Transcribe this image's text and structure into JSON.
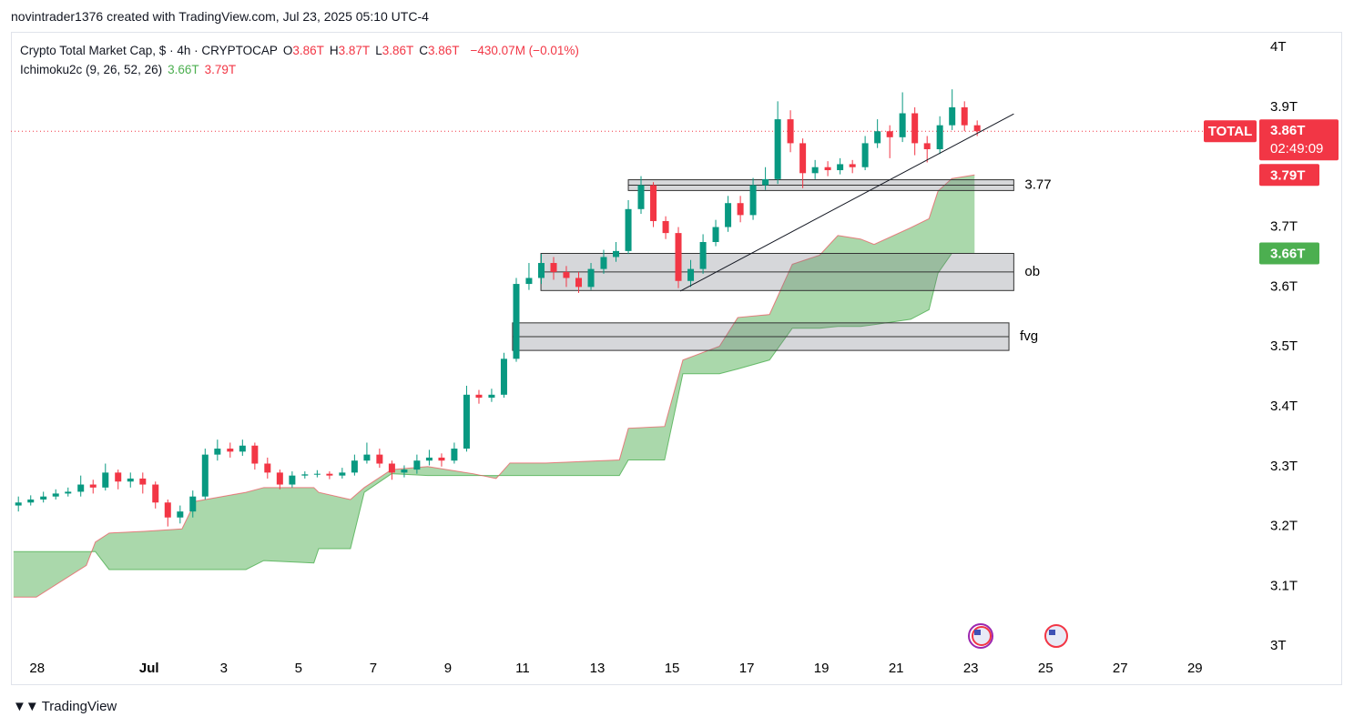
{
  "header": {
    "credit": "novintrader1376 created with TradingView.com, Jul 23, 2025 05:10 UTC-4"
  },
  "footer": {
    "brand": "TradingView"
  },
  "chart_data": {
    "type": "candlestick",
    "title": "Crypto Total Market Cap, $ · 4h · CRYPTOCAP",
    "ohlc_legend": [
      {
        "key": "O",
        "value": "3.86T"
      },
      {
        "key": "H",
        "value": "3.87T"
      },
      {
        "key": "L",
        "value": "3.86T"
      },
      {
        "key": "C",
        "value": "3.86T"
      }
    ],
    "change": "−430.07M (−0.01%)",
    "up_color": "#089981",
    "down_color": "#f23645",
    "x": [
      -0.5,
      -0.17,
      0.17,
      0.5,
      0.83,
      1.17,
      1.5,
      1.83,
      2.17,
      2.5,
      2.83,
      3.17,
      3.5,
      3.83,
      4.17,
      4.5,
      4.83,
      5.17,
      5.5,
      5.83,
      6.17,
      6.5,
      6.83,
      7.17,
      7.5,
      7.83,
      8.17,
      8.5,
      8.83,
      9.17,
      9.5,
      9.83,
      10.17,
      10.5,
      10.83,
      11.17,
      11.5,
      11.83,
      12.17,
      12.5,
      12.83,
      13.17,
      13.5,
      13.83,
      14.17,
      14.5,
      14.83,
      15.17,
      15.5,
      15.83,
      16.17,
      16.5,
      16.83,
      17.17,
      17.5,
      17.83,
      18.17,
      18.5,
      18.83,
      19.17,
      19.5,
      19.83,
      20.17,
      20.5,
      20.83,
      21.17,
      21.5,
      21.83,
      22.17,
      22.5,
      22.83,
      23.17,
      23.5,
      23.83,
      24.17,
      24.5,
      24.83,
      25.17
    ],
    "open": [
      3.235,
      3.24,
      3.245,
      3.25,
      3.255,
      3.258,
      3.27,
      3.265,
      3.29,
      3.275,
      3.28,
      3.27,
      3.24,
      3.215,
      3.225,
      3.25,
      3.32,
      3.33,
      3.325,
      3.335,
      3.305,
      3.29,
      3.27,
      3.285,
      3.287,
      3.288,
      3.285,
      3.29,
      3.31,
      3.32,
      3.305,
      3.29,
      3.295,
      3.31,
      3.315,
      3.31,
      3.33,
      3.42,
      3.415,
      3.42,
      3.48,
      3.605,
      3.615,
      3.64,
      3.625,
      3.615,
      3.6,
      3.63,
      3.65,
      3.66,
      3.73,
      3.77,
      3.71,
      3.69,
      3.61,
      3.63,
      3.675,
      3.7,
      3.74,
      3.72,
      3.77,
      3.78,
      3.88,
      3.84,
      3.79,
      3.8,
      3.795,
      3.805,
      3.8,
      3.84,
      3.86,
      3.85,
      3.89,
      3.84,
      3.83,
      3.87,
      3.9,
      3.87
    ],
    "high": [
      3.25,
      3.252,
      3.258,
      3.262,
      3.265,
      3.285,
      3.278,
      3.305,
      3.295,
      3.29,
      3.29,
      3.275,
      3.245,
      3.235,
      3.26,
      3.33,
      3.345,
      3.34,
      3.345,
      3.34,
      3.315,
      3.295,
      3.292,
      3.292,
      3.294,
      3.292,
      3.298,
      3.32,
      3.34,
      3.33,
      3.31,
      3.302,
      3.32,
      3.328,
      3.322,
      3.34,
      3.435,
      3.428,
      3.43,
      3.49,
      3.615,
      3.64,
      3.655,
      3.65,
      3.635,
      3.625,
      3.64,
      3.662,
      3.675,
      3.745,
      3.785,
      3.775,
      3.718,
      3.7,
      3.645,
      3.688,
      3.712,
      3.752,
      3.752,
      3.782,
      3.8,
      3.91,
      3.895,
      3.848,
      3.812,
      3.81,
      3.815,
      3.812,
      3.852,
      3.88,
      3.87,
      3.925,
      3.9,
      3.852,
      3.885,
      3.93,
      3.91,
      3.878
    ],
    "low": [
      3.225,
      3.235,
      3.24,
      3.245,
      3.25,
      3.25,
      3.255,
      3.26,
      3.262,
      3.265,
      3.255,
      3.23,
      3.2,
      3.205,
      3.215,
      3.245,
      3.31,
      3.315,
      3.318,
      3.295,
      3.28,
      3.262,
      3.265,
      3.28,
      3.282,
      3.279,
      3.28,
      3.285,
      3.305,
      3.298,
      3.278,
      3.282,
      3.288,
      3.302,
      3.3,
      3.305,
      3.325,
      3.405,
      3.408,
      3.415,
      3.475,
      3.595,
      3.605,
      3.612,
      3.6,
      3.59,
      3.595,
      3.622,
      3.642,
      3.655,
      3.722,
      3.7,
      3.68,
      3.598,
      3.6,
      3.622,
      3.668,
      3.692,
      3.708,
      3.712,
      3.762,
      3.772,
      3.825,
      3.765,
      3.78,
      3.785,
      3.788,
      3.79,
      3.795,
      3.832,
      3.815,
      3.842,
      3.82,
      3.808,
      3.822,
      3.862,
      3.86,
      3.852
    ],
    "close": [
      3.24,
      3.245,
      3.25,
      3.255,
      3.258,
      3.27,
      3.265,
      3.29,
      3.275,
      3.28,
      3.27,
      3.24,
      3.215,
      3.225,
      3.25,
      3.32,
      3.33,
      3.325,
      3.335,
      3.305,
      3.29,
      3.27,
      3.285,
      3.287,
      3.288,
      3.285,
      3.29,
      3.31,
      3.32,
      3.305,
      3.29,
      3.295,
      3.31,
      3.315,
      3.31,
      3.33,
      3.42,
      3.415,
      3.42,
      3.48,
      3.605,
      3.615,
      3.64,
      3.625,
      3.615,
      3.6,
      3.63,
      3.65,
      3.66,
      3.73,
      3.77,
      3.71,
      3.69,
      3.61,
      3.63,
      3.675,
      3.7,
      3.74,
      3.72,
      3.77,
      3.78,
      3.88,
      3.84,
      3.79,
      3.8,
      3.795,
      3.805,
      3.8,
      3.84,
      3.86,
      3.85,
      3.89,
      3.84,
      3.83,
      3.87,
      3.9,
      3.87,
      3.86
    ],
    "xlim": [
      -0.7,
      32.65
    ],
    "xticks": [
      {
        "value": 0,
        "label": "28"
      },
      {
        "value": 3,
        "label": "Jul"
      },
      {
        "value": 5,
        "label": "3"
      },
      {
        "value": 7,
        "label": "5"
      },
      {
        "value": 9,
        "label": "7"
      },
      {
        "value": 11,
        "label": "9"
      },
      {
        "value": 13,
        "label": "11"
      },
      {
        "value": 15,
        "label": "13"
      },
      {
        "value": 17,
        "label": "15"
      },
      {
        "value": 19,
        "label": "17"
      },
      {
        "value": 21,
        "label": "19"
      },
      {
        "value": 23,
        "label": "21"
      },
      {
        "value": 25,
        "label": "23"
      },
      {
        "value": 27,
        "label": "25"
      },
      {
        "value": 29,
        "label": "27"
      },
      {
        "value": 31,
        "label": "29"
      }
    ],
    "ylim": [
      2.935,
      4.026
    ],
    "yticks": [
      {
        "value": 3,
        "label": "3T"
      },
      {
        "value": 3.1,
        "label": "3.1T"
      },
      {
        "value": 3.2,
        "label": "3.2T"
      },
      {
        "value": 3.3,
        "label": "3.3T"
      },
      {
        "value": 3.4,
        "label": "3.4T"
      },
      {
        "value": 3.5,
        "label": "3.5T"
      },
      {
        "value": 3.6,
        "label": "3.6T"
      },
      {
        "value": 3.7,
        "label": "3.7T"
      },
      {
        "value": 3.9,
        "label": "3.9T"
      },
      {
        "value": 4,
        "label": "4T"
      }
    ],
    "grid": false,
    "price_line": {
      "name": "TOTAL",
      "label": "3.86T",
      "countdown": "02:49:09"
    },
    "indicator": {
      "name": "Ichimoku2c (9, 26, 52, 26)",
      "cloud_color": "#a5d6a7",
      "x": [
        -0.63,
        -0.02,
        1.32,
        1.56,
        1.93,
        2.9,
        3.88,
        4.24,
        5.59,
        6.07,
        7.41,
        7.54,
        8.39,
        8.76,
        9.49,
        10.46,
        11.68,
        12.29,
        12.66,
        13.63,
        15.59,
        15.83,
        16.8,
        17.29,
        18.27,
        18.76,
        19.61,
        20.22,
        20.95,
        21.44,
        22.05,
        22.41,
        23.39,
        23.88,
        24.12,
        24.49,
        25.1
      ],
      "series": [
        {
          "value_label": "3.66T",
          "color": "#4caf50",
          "values": [
            3.158,
            3.158,
            3.158,
            3.158,
            3.128,
            3.128,
            3.128,
            3.128,
            3.128,
            3.143,
            3.139,
            3.163,
            3.163,
            3.257,
            3.288,
            3.285,
            3.285,
            3.285,
            3.285,
            3.285,
            3.285,
            3.311,
            3.311,
            3.455,
            3.455,
            3.463,
            3.478,
            3.531,
            3.531,
            3.534,
            3.534,
            3.537,
            3.546,
            3.562,
            3.623,
            3.656,
            3.656
          ]
        },
        {
          "value_label": "3.79T",
          "color": "#f23645",
          "values": [
            3.082,
            3.082,
            3.135,
            3.174,
            3.189,
            3.192,
            3.196,
            3.242,
            3.257,
            3.265,
            3.265,
            3.257,
            3.245,
            3.265,
            3.295,
            3.3,
            3.288,
            3.28,
            3.306,
            3.306,
            3.311,
            3.364,
            3.367,
            3.478,
            3.501,
            3.549,
            3.554,
            3.638,
            3.653,
            3.686,
            3.68,
            3.671,
            3.699,
            3.714,
            3.76,
            3.781,
            3.787
          ]
        }
      ]
    },
    "zones": [
      {
        "label": "3.77",
        "x": [
          15.83,
          26.15
        ],
        "y": [
          3.761,
          3.779
        ]
      },
      {
        "label": "ob",
        "x": [
          13.49,
          26.15
        ],
        "y": [
          3.594,
          3.656
        ]
      },
      {
        "label": "fvg",
        "x": [
          12.73,
          26.02
        ],
        "y": [
          3.494,
          3.54
        ]
      }
    ],
    "trendline": {
      "x": [
        17.22,
        26.15
      ],
      "y": [
        3.593,
        3.889
      ]
    }
  }
}
